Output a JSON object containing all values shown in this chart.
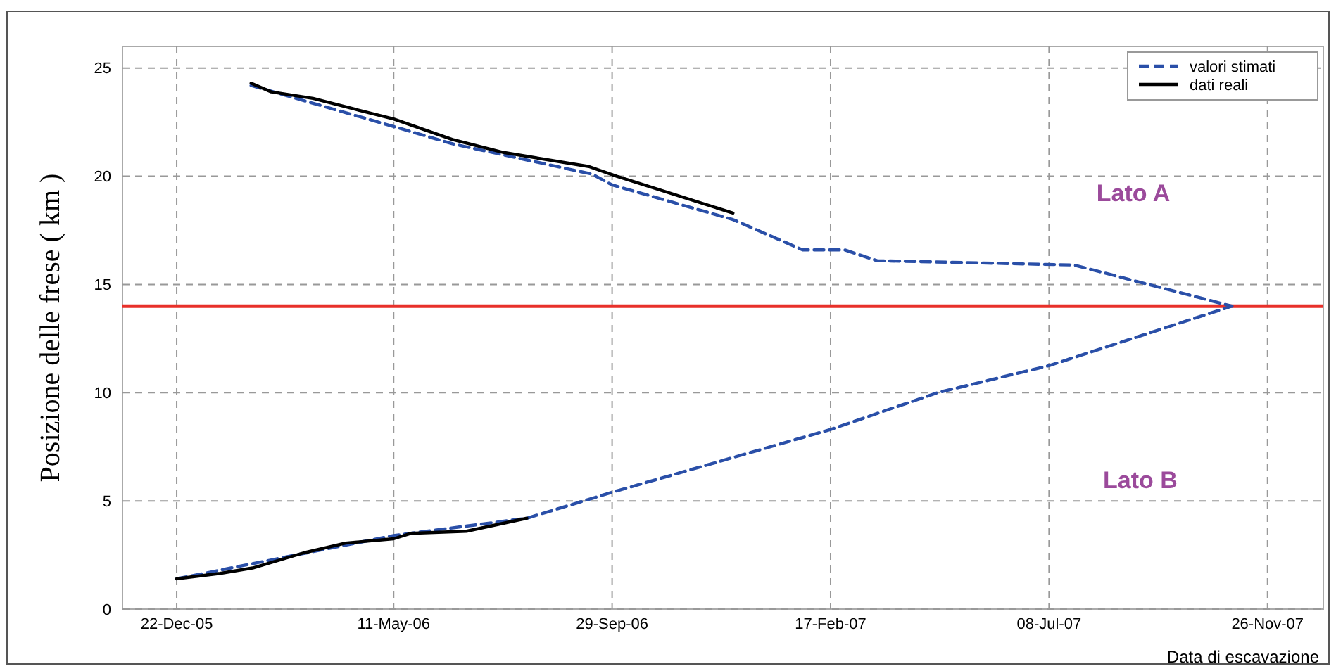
{
  "chart_data": {
    "type": "line",
    "xlabel": "Data di escavazione",
    "ylabel": "Posizione delle frese ( km )",
    "xlim": [
      "2005-11-17",
      "2008-01-01"
    ],
    "xticks": [
      {
        "value": "2005-12-22",
        "label": "22-Dec-05"
      },
      {
        "value": "2006-05-11",
        "label": "11-May-06"
      },
      {
        "value": "2006-09-29",
        "label": "29-Sep-06"
      },
      {
        "value": "2007-02-17",
        "label": "17-Feb-07"
      },
      {
        "value": "2007-07-08",
        "label": "08-Jul-07"
      },
      {
        "value": "2007-11-26",
        "label": "26-Nov-07"
      }
    ],
    "ylim": [
      0,
      26
    ],
    "yticks": [
      0,
      5,
      10,
      15,
      20,
      25
    ],
    "grid": true,
    "legend": "top right",
    "ref_lines": [
      {
        "axis": "y",
        "value": 14,
        "color": "#e8302a",
        "line_style": "solid"
      }
    ],
    "annotations": [
      "Lato A",
      "Lato B"
    ],
    "series": [
      {
        "name": "valori stimati",
        "color": "#2a4fa8",
        "line_style": "dashed",
        "x": [
          "2006-02-08",
          "2006-05-11",
          "2006-06-18",
          "2006-09-16",
          "2006-09-29",
          "2006-12-16",
          "2007-01-30",
          "2007-02-26",
          "2007-03-19",
          "2007-07-24",
          "2007-11-03"
        ],
        "values": [
          24.2,
          22.3,
          21.5,
          20.1,
          19.6,
          18.0,
          16.6,
          16.6,
          16.1,
          15.9,
          14.0
        ]
      },
      {
        "color": "#2a4fa8",
        "line_style": "dashed",
        "x": [
          "2005-12-22",
          "2006-05-11",
          "2006-08-05",
          "2006-09-29",
          "2007-02-17",
          "2007-04-27",
          "2007-07-08",
          "2007-11-03"
        ],
        "values": [
          1.4,
          3.4,
          4.2,
          5.4,
          8.3,
          10.0,
          11.25,
          14.0
        ]
      },
      {
        "name": "dati reali",
        "color": "#000000",
        "line_style": "solid",
        "x": [
          "2006-02-08",
          "2006-02-21",
          "2006-03-20",
          "2006-04-16",
          "2006-05-11",
          "2006-06-18",
          "2006-07-21",
          "2006-09-14",
          "2006-10-02",
          "2006-12-16"
        ],
        "values": [
          24.3,
          23.9,
          23.6,
          23.1,
          22.65,
          21.7,
          21.1,
          20.45,
          20.0,
          18.3
        ]
      },
      {
        "color": "#000000",
        "line_style": "solid",
        "x": [
          "2005-12-22",
          "2006-01-19",
          "2006-02-09",
          "2006-03-14",
          "2006-04-10",
          "2006-05-11",
          "2006-05-22",
          "2006-06-27",
          "2006-08-05"
        ],
        "values": [
          1.4,
          1.65,
          1.9,
          2.6,
          3.05,
          3.25,
          3.5,
          3.6,
          4.2
        ]
      }
    ]
  }
}
